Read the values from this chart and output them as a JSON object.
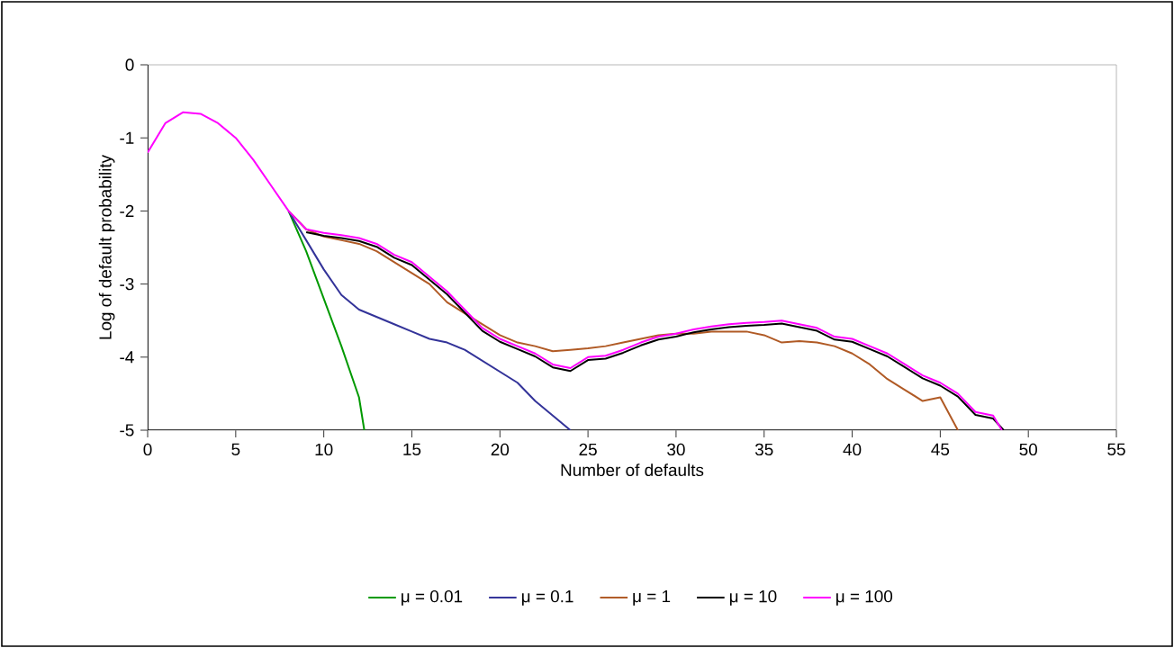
{
  "chart_data": {
    "type": "line",
    "xlabel": "Number of defaults",
    "ylabel": "Log of default probability",
    "xlim": [
      0,
      55
    ],
    "xticks": [
      0,
      5,
      10,
      15,
      20,
      25,
      30,
      35,
      40,
      45,
      50,
      55
    ],
    "ylim": [
      -5,
      0
    ],
    "yticks": [
      -5,
      -4,
      -3,
      -2,
      -1,
      0
    ],
    "grid": false,
    "legend": "bottom",
    "marker": "none",
    "line_style": "solid",
    "series": [
      {
        "name": "μ = 0.01",
        "color": "#009900",
        "x": [
          8,
          9,
          10,
          11,
          12,
          12.3
        ],
        "values": [
          -2.0,
          -2.55,
          -3.2,
          -3.85,
          -4.55,
          -5
        ]
      },
      {
        "name": "μ = 0.1",
        "color": "#333399",
        "x": [
          8,
          9,
          10,
          11,
          12,
          13,
          14,
          15,
          16,
          17,
          18,
          19,
          20,
          21,
          22,
          23,
          24
        ],
        "values": [
          -2.0,
          -2.4,
          -2.8,
          -3.15,
          -3.35,
          -3.45,
          -3.55,
          -3.65,
          -3.75,
          -3.8,
          -3.9,
          -4.05,
          -4.2,
          -4.35,
          -4.6,
          -4.8,
          -5
        ]
      },
      {
        "name": "μ = 1",
        "color": "#b05a25",
        "x": [
          8,
          9,
          10,
          11,
          12,
          13,
          14,
          15,
          16,
          17,
          18,
          19,
          20,
          21,
          22,
          23,
          24,
          25,
          26,
          27,
          28,
          29,
          30,
          31,
          32,
          33,
          34,
          35,
          36,
          37,
          38,
          39,
          40,
          41,
          42,
          43,
          44,
          45,
          46
        ],
        "values": [
          -2.0,
          -2.25,
          -2.35,
          -2.4,
          -2.45,
          -2.55,
          -2.7,
          -2.85,
          -3.0,
          -3.25,
          -3.4,
          -3.55,
          -3.7,
          -3.8,
          -3.85,
          -3.92,
          -3.9,
          -3.88,
          -3.85,
          -3.8,
          -3.75,
          -3.7,
          -3.68,
          -3.68,
          -3.65,
          -3.65,
          -3.65,
          -3.7,
          -3.8,
          -3.78,
          -3.8,
          -3.85,
          -3.95,
          -4.1,
          -4.3,
          -4.45,
          -4.6,
          -4.55,
          -5
        ]
      },
      {
        "name": "μ = 10",
        "color": "#000000",
        "x": [
          9,
          10,
          11,
          12,
          13,
          14,
          15,
          16,
          17,
          18,
          19,
          20,
          21,
          22,
          23,
          24,
          25,
          26,
          27,
          28,
          29,
          30,
          31,
          32,
          33,
          34,
          35,
          36,
          37,
          38,
          39,
          40,
          41,
          42,
          43,
          44,
          45,
          46,
          47,
          48,
          48.6
        ],
        "values": [
          -2.29,
          -2.34,
          -2.37,
          -2.41,
          -2.49,
          -2.64,
          -2.74,
          -2.94,
          -3.14,
          -3.39,
          -3.64,
          -3.79,
          -3.89,
          -3.99,
          -4.14,
          -4.19,
          -4.04,
          -4.02,
          -3.94,
          -3.84,
          -3.76,
          -3.72,
          -3.66,
          -3.62,
          -3.59,
          -3.57,
          -3.56,
          -3.54,
          -3.59,
          -3.64,
          -3.76,
          -3.79,
          -3.89,
          -3.99,
          -4.14,
          -4.29,
          -4.39,
          -4.54,
          -4.79,
          -4.84,
          -5
        ]
      },
      {
        "name": "μ = 100",
        "color": "#ff00ff",
        "x": [
          0,
          1,
          2,
          3,
          4,
          5,
          6,
          7,
          8,
          9,
          10,
          11,
          12,
          13,
          14,
          15,
          16,
          17,
          18,
          19,
          20,
          21,
          22,
          23,
          24,
          25,
          26,
          27,
          28,
          29,
          30,
          31,
          32,
          33,
          34,
          35,
          36,
          37,
          38,
          39,
          40,
          41,
          42,
          43,
          44,
          45,
          46,
          47,
          48,
          48.5
        ],
        "values": [
          -1.2,
          -0.8,
          -0.65,
          -0.67,
          -0.8,
          -1.0,
          -1.3,
          -1.65,
          -2.0,
          -2.25,
          -2.3,
          -2.33,
          -2.37,
          -2.45,
          -2.6,
          -2.7,
          -2.9,
          -3.1,
          -3.35,
          -3.6,
          -3.75,
          -3.85,
          -3.95,
          -4.1,
          -4.15,
          -4.0,
          -3.98,
          -3.9,
          -3.8,
          -3.72,
          -3.68,
          -3.62,
          -3.58,
          -3.55,
          -3.53,
          -3.52,
          -3.5,
          -3.55,
          -3.6,
          -3.72,
          -3.75,
          -3.85,
          -3.95,
          -4.1,
          -4.25,
          -4.35,
          -4.5,
          -4.75,
          -4.8,
          -5
        ]
      }
    ]
  }
}
